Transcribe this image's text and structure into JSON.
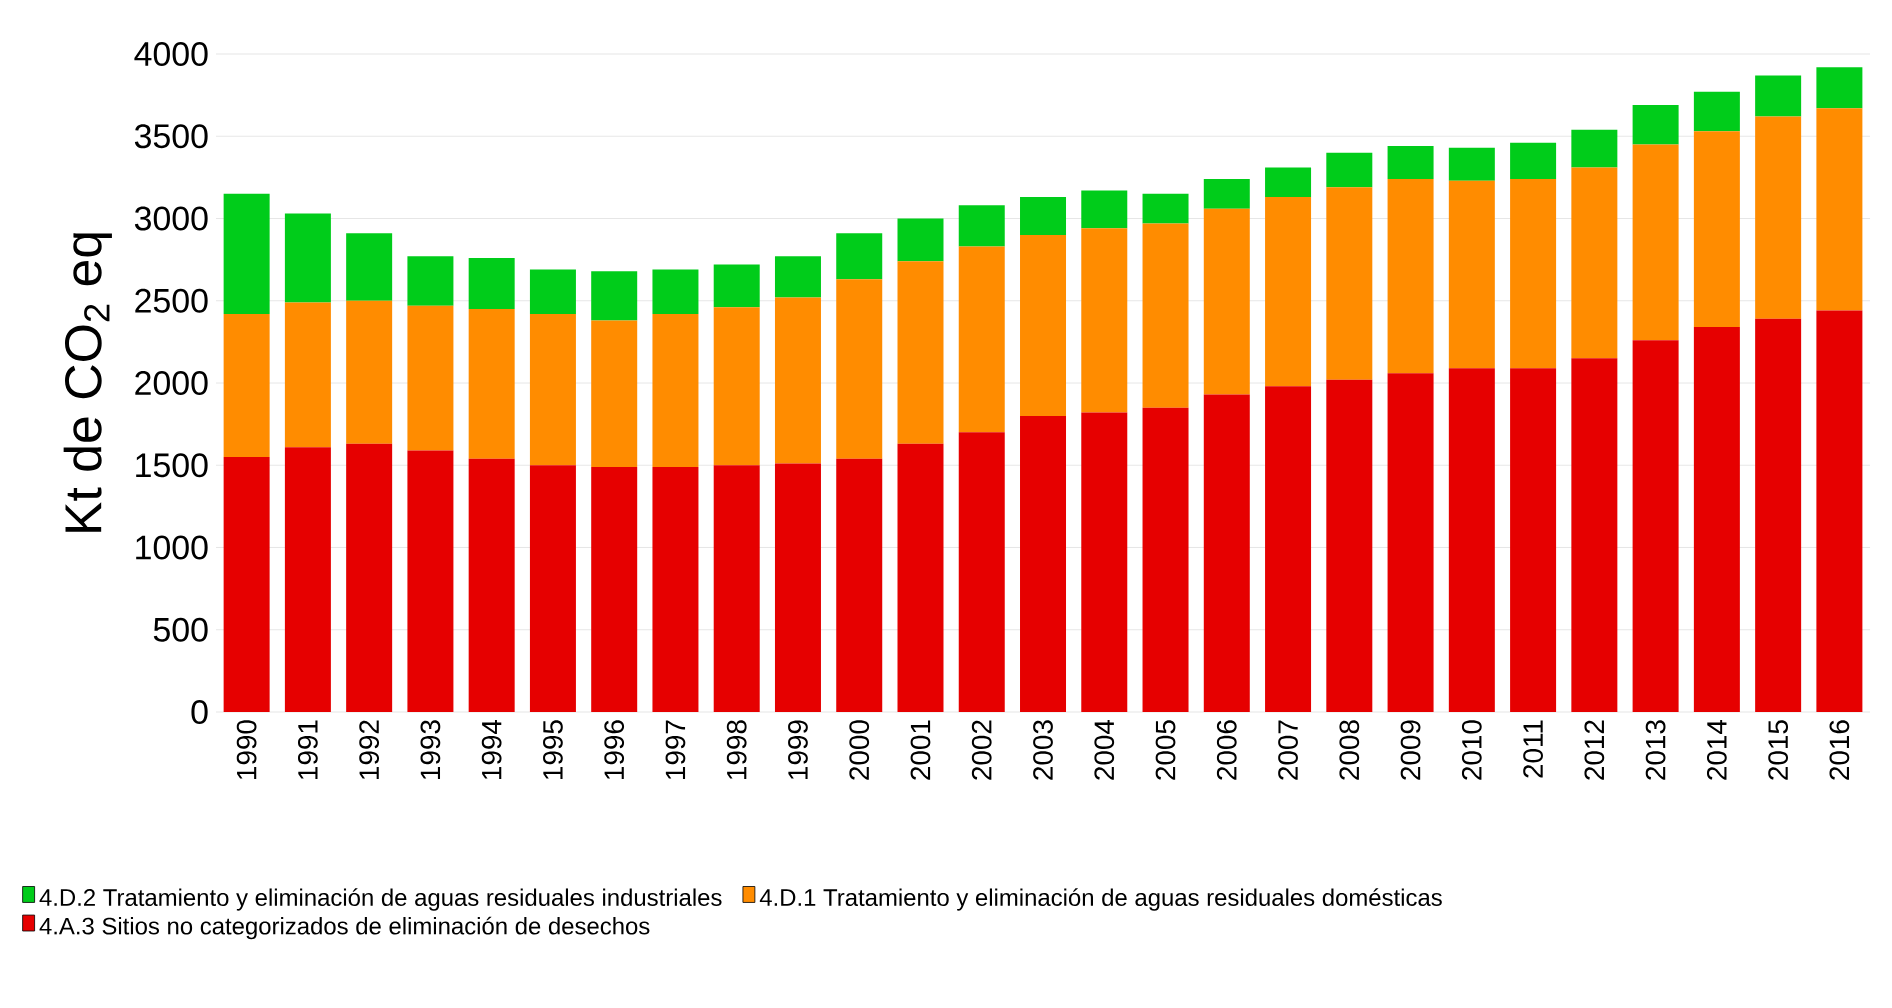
{
  "chart_data": {
    "type": "bar",
    "stacked": true,
    "ylabel": "Kt de CO$_{2}$ eq",
    "categories": [
      "1990",
      "1991",
      "1992",
      "1993",
      "1994",
      "1995",
      "1996",
      "1997",
      "1998",
      "1999",
      "2000",
      "2001",
      "2002",
      "2003",
      "2004",
      "2005",
      "2006",
      "2007",
      "2008",
      "2009",
      "2010",
      "2011",
      "2012",
      "2013",
      "2014",
      "2015",
      "2016"
    ],
    "series": [
      {
        "name": "4.A.3 Sitios no categorizados de eliminación de desechos",
        "color": "#e60000",
        "values": [
          1550,
          1610,
          1630,
          1590,
          1540,
          1500,
          1490,
          1490,
          1500,
          1510,
          1540,
          1630,
          1700,
          1800,
          1820,
          1850,
          1930,
          1980,
          2020,
          2060,
          2090,
          2090,
          2150,
          2260,
          2340,
          2390,
          2440
        ]
      },
      {
        "name": "4.D.1 Tratamiento y eliminación de aguas residuales domésticas",
        "color": "#ff8c00",
        "values": [
          870,
          880,
          870,
          880,
          910,
          920,
          890,
          930,
          960,
          1010,
          1090,
          1110,
          1130,
          1100,
          1120,
          1120,
          1130,
          1150,
          1170,
          1180,
          1140,
          1150,
          1160,
          1190,
          1190,
          1230,
          1230
        ]
      },
      {
        "name": "4.D.2 Tratamiento y eliminación de aguas residuales industriales",
        "color": "#00cc1a",
        "values": [
          730,
          540,
          410,
          300,
          310,
          270,
          300,
          270,
          260,
          250,
          280,
          260,
          250,
          230,
          230,
          180,
          180,
          180,
          210,
          200,
          200,
          220,
          230,
          240,
          240,
          250,
          250
        ]
      }
    ],
    "ylim": [
      0,
      4000
    ],
    "yticks": [
      0,
      500,
      1000,
      1500,
      2000,
      2500,
      3000,
      3500,
      4000
    ],
    "grid": "y",
    "legend": "bottom"
  }
}
